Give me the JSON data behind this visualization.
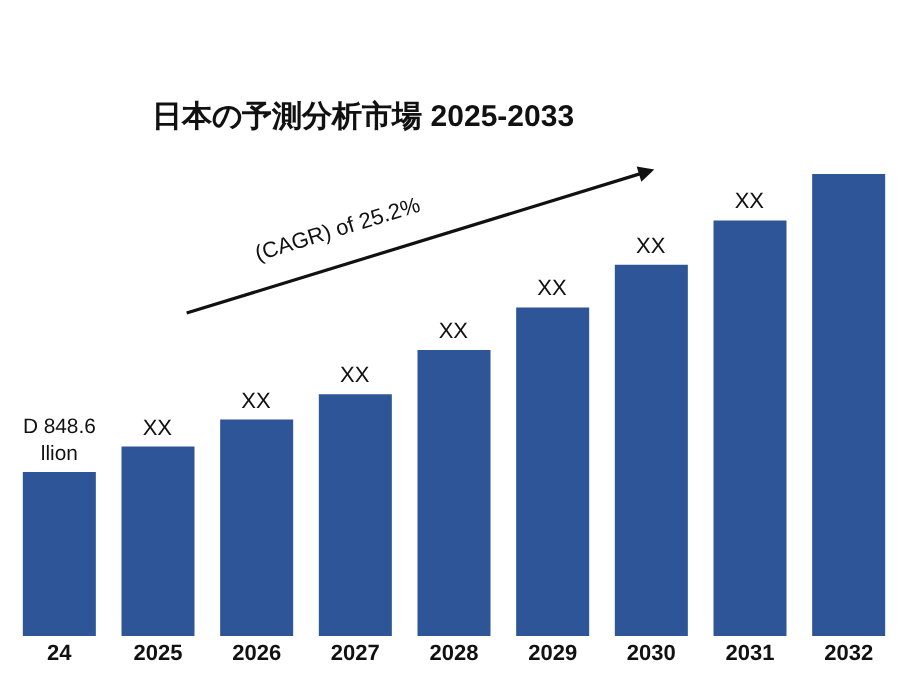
{
  "chart_data": {
    "type": "bar",
    "title": "日本の予測分析市場 2025-2033",
    "categories": [
      "24",
      "2025",
      "2026",
      "2027",
      "2028",
      "2029",
      "2030",
      "2031",
      "2032"
    ],
    "values": [
      848.6,
      980,
      1120,
      1250,
      1480,
      1700,
      1920,
      2150,
      2390
    ],
    "color": "#2e5597",
    "ylim": [
      0,
      2390
    ],
    "tick_labels": "x",
    "value_labels": [
      "D 848.6\nllion",
      "XX",
      "XX",
      "XX",
      "XX",
      "XX",
      "XX",
      "XX",
      null
    ],
    "annotations": [
      "(CAGR) of 25.2%"
    ]
  }
}
